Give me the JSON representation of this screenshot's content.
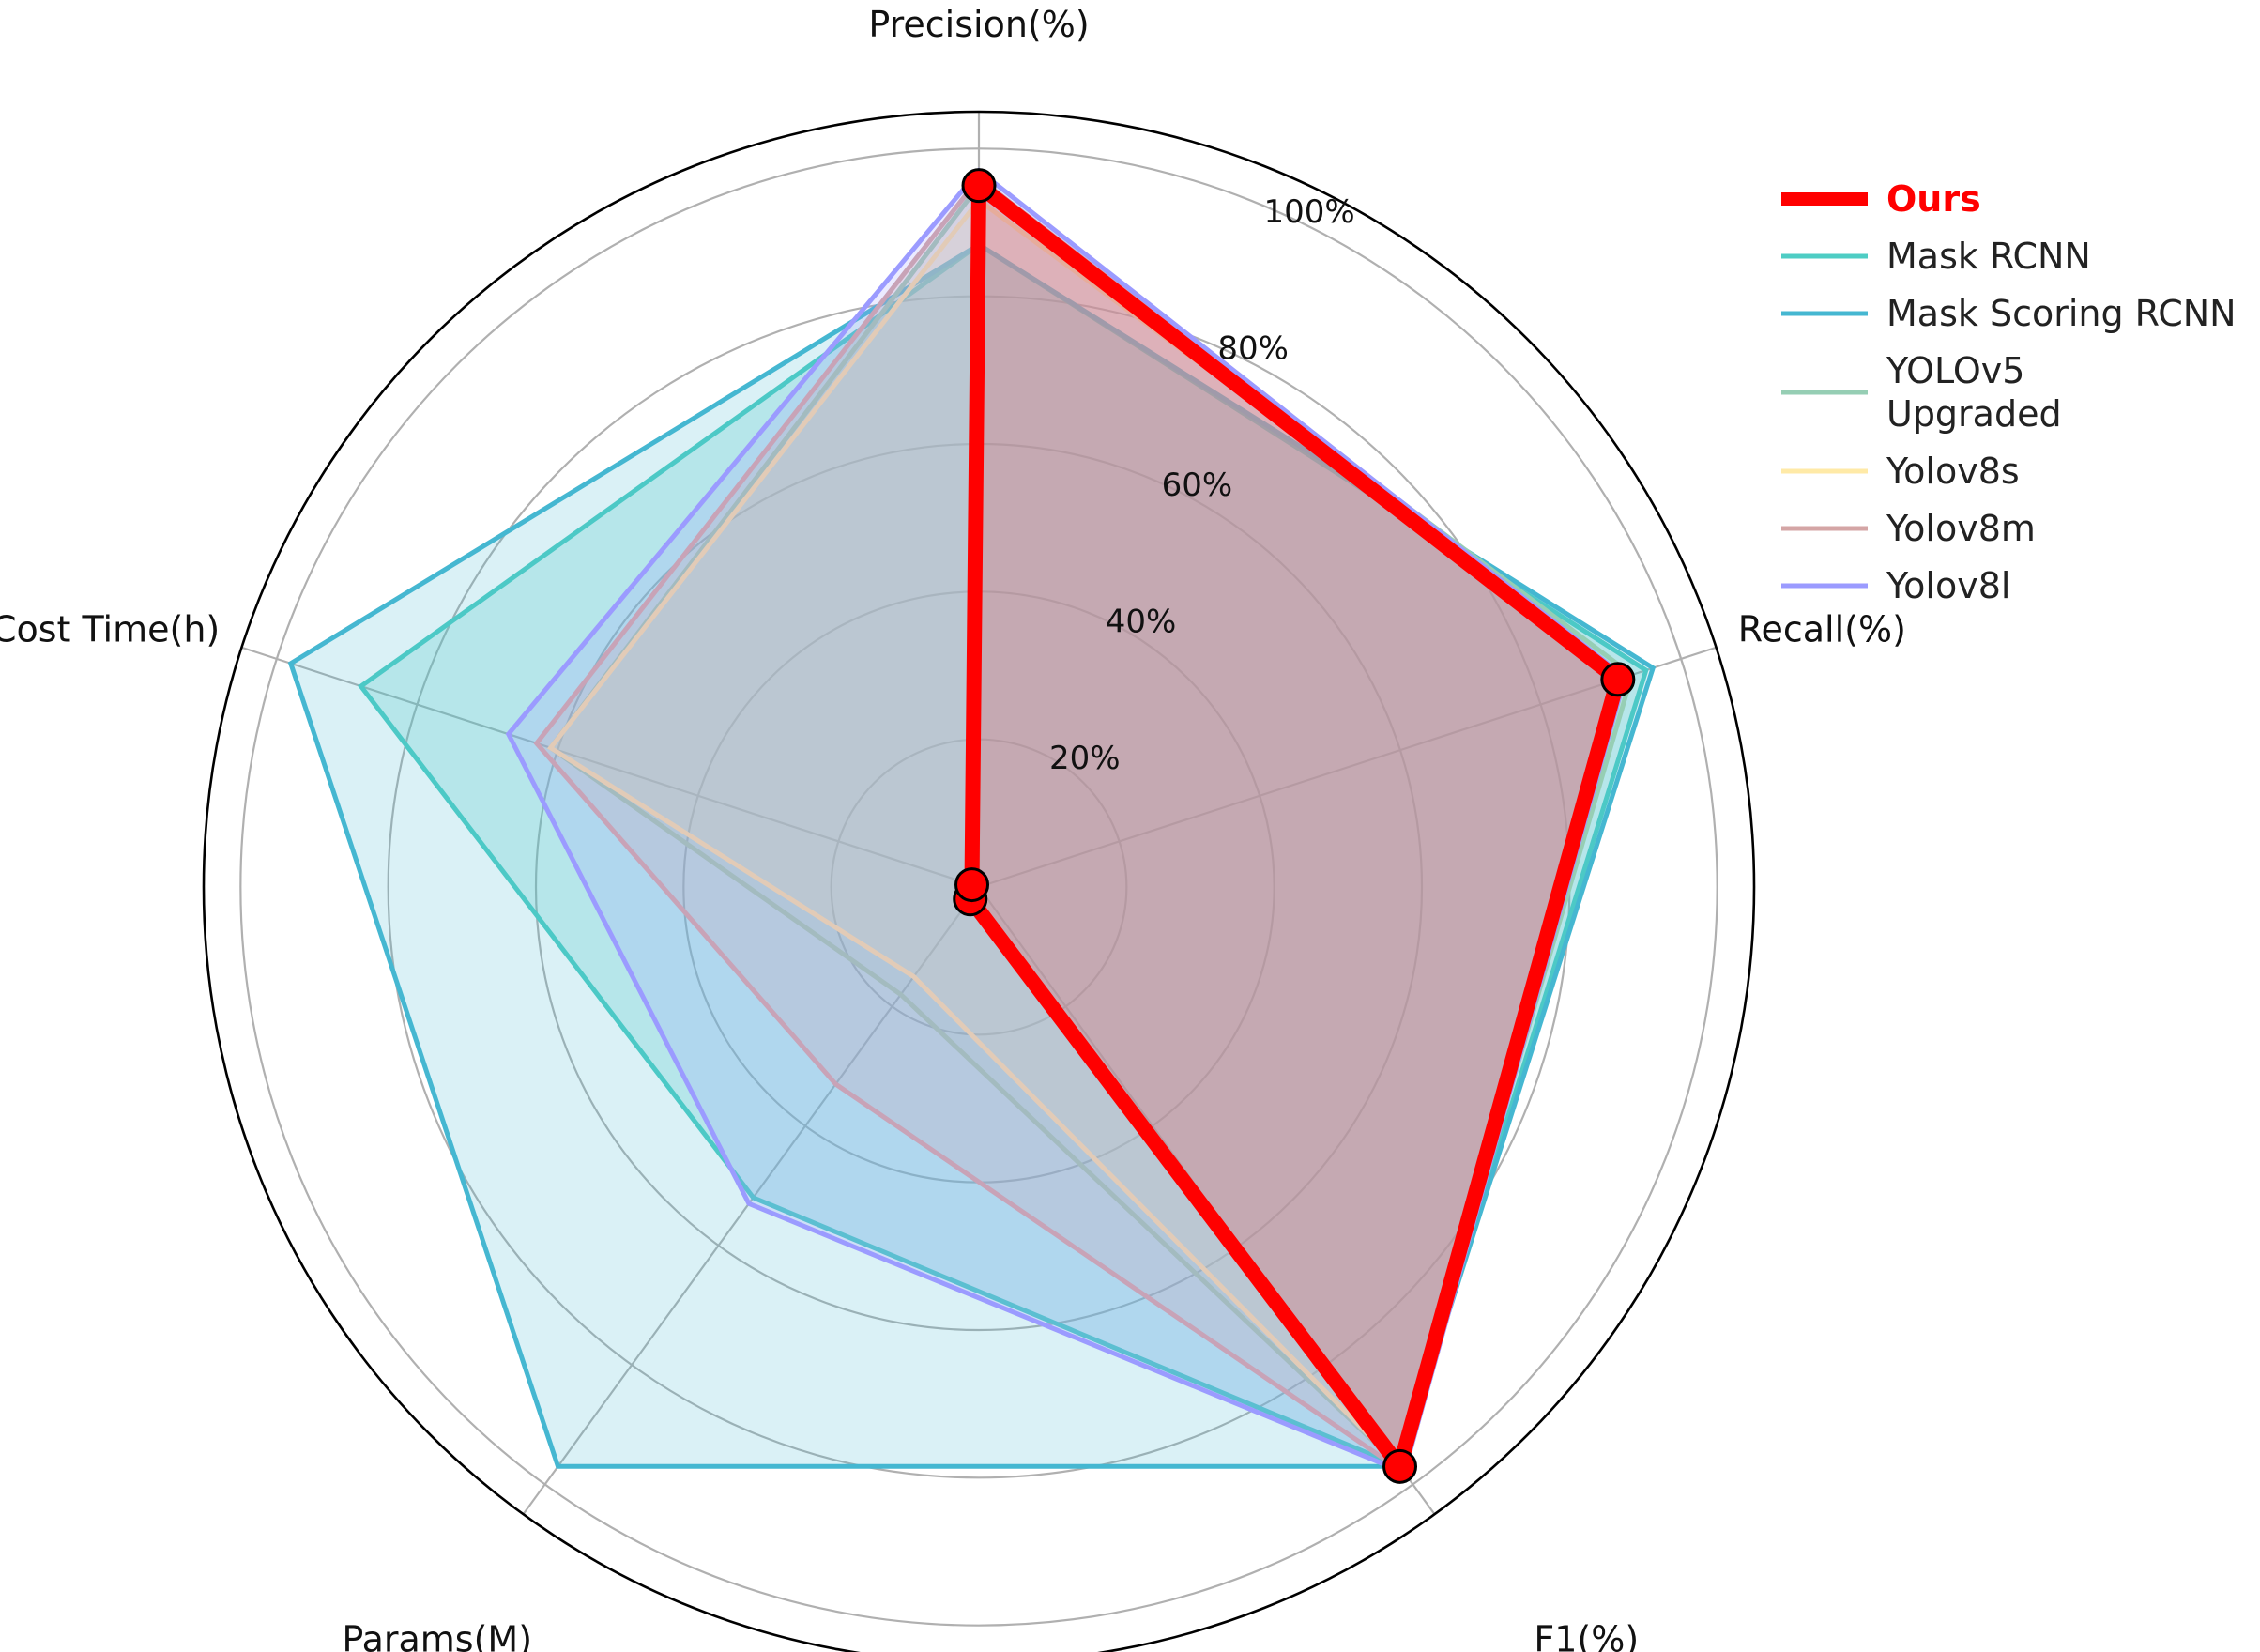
{
  "chart_data": {
    "type": "radar",
    "title": "",
    "axes": [
      "Precision(%)",
      "Recall(%)",
      "F1(%)",
      "Params(M)",
      "Cost Time(h)"
    ],
    "radial_ticks": [
      "20%",
      "40%",
      "60%",
      "80%",
      "100%"
    ],
    "radial_tick_values": [
      20,
      40,
      60,
      80,
      100
    ],
    "rmax": 105,
    "grid": true,
    "legend_position": "upper-right",
    "series": [
      {
        "name": "Mask RCNN",
        "legend_lines": [
          "Mask RCNN"
        ],
        "color": "#4ECDC4",
        "fill": "#4ECDC4",
        "fill_opacity": 0.25,
        "values": [
          87,
          95,
          97,
          52,
          88
        ],
        "markers": false,
        "bold": false
      },
      {
        "name": "Mask Scoring RCNN",
        "legend_lines": [
          "Mask Scoring RCNN"
        ],
        "color": "#45B7D1",
        "fill": "#45B7D1",
        "fill_opacity": 0.2,
        "values": [
          87,
          96,
          97,
          97,
          98
        ],
        "markers": false,
        "bold": false
      },
      {
        "name": "YOLOv5 Upgraded",
        "legend_lines": [
          "YOLOv5",
          "Upgraded"
        ],
        "color": "#96CEB4",
        "fill": "#96CEB4",
        "fill_opacity": 0.2,
        "values": [
          95,
          93,
          97,
          18,
          61
        ],
        "markers": false,
        "bold": false
      },
      {
        "name": "Yolov8s",
        "legend_lines": [
          "Yolov8s"
        ],
        "color": "#FFEAA7",
        "fill": "#FFEAA7",
        "fill_opacity": 0.2,
        "values": [
          93,
          92,
          97,
          15,
          61
        ],
        "markers": false,
        "bold": false
      },
      {
        "name": "Yolov8m",
        "legend_lines": [
          "Yolov8m"
        ],
        "color": "#D4A5A5",
        "fill": "#D4A5A5",
        "fill_opacity": 0.25,
        "values": [
          96,
          92,
          98,
          33,
          63
        ],
        "markers": false,
        "bold": false
      },
      {
        "name": "Yolov8l",
        "legend_lines": [
          "Yolov8l"
        ],
        "color": "#9B9BFF",
        "fill": "#9B9BFF",
        "fill_opacity": 0.2,
        "values": [
          97,
          92,
          98,
          53,
          67
        ],
        "markers": false,
        "bold": false
      },
      {
        "name": "Ours",
        "legend_lines": [
          "Ours"
        ],
        "color": "#FF0000",
        "fill": "#FF0000",
        "fill_opacity": 0.15,
        "values": [
          95,
          91,
          97,
          2,
          1
        ],
        "markers": true,
        "bold": true
      }
    ],
    "legend_order": [
      "Ours",
      "Mask RCNN",
      "Mask Scoring RCNN",
      "YOLOv5 Upgraded",
      "Yolov8s",
      "Yolov8m",
      "Yolov8l"
    ]
  }
}
